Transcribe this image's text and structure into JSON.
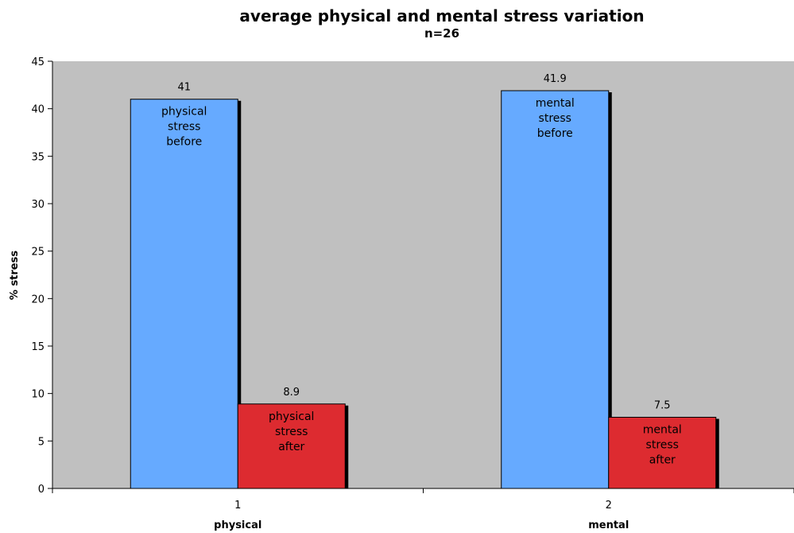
{
  "chart_data": {
    "type": "bar",
    "title": "average physical and mental stress variation",
    "subtitle": "n=26",
    "ylabel": "% stress",
    "ylim": [
      0,
      45
    ],
    "yticks": [
      0,
      5,
      10,
      15,
      20,
      25,
      30,
      35,
      40,
      45
    ],
    "grid": false,
    "legend": "none",
    "background_color": "#c0c0c0",
    "groups": [
      {
        "tick": "1",
        "label": "physical",
        "bars": [
          {
            "value": 41,
            "value_label": "41",
            "lines": [
              "physical",
              "stress",
              "before"
            ],
            "color": "#66aaff"
          },
          {
            "value": 8.9,
            "value_label": "8.9",
            "lines": [
              "physical",
              "stress",
              "after"
            ],
            "color": "#dd2b30"
          }
        ]
      },
      {
        "tick": "2",
        "label": "mental",
        "bars": [
          {
            "value": 41.9,
            "value_label": "41.9",
            "lines": [
              "mental",
              "stress",
              "before"
            ],
            "color": "#66aaff"
          },
          {
            "value": 7.5,
            "value_label": "7.5",
            "lines": [
              "mental",
              "stress",
              "after"
            ],
            "color": "#dd2b30"
          }
        ]
      }
    ]
  }
}
